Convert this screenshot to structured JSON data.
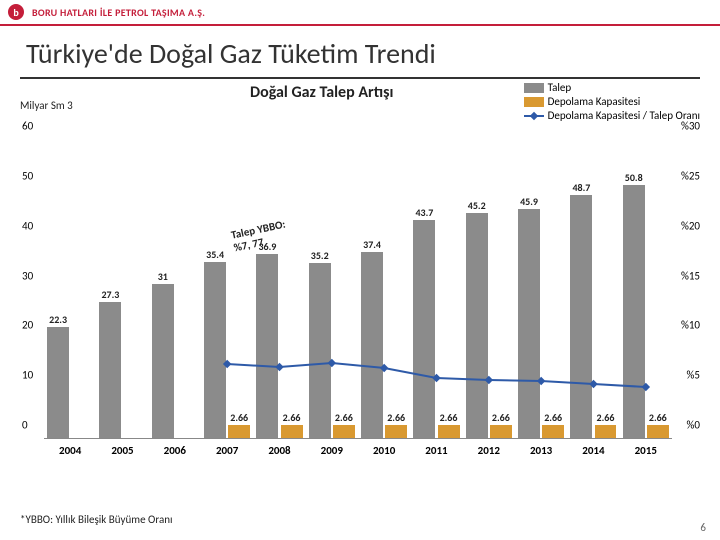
{
  "header": {
    "company": "BORU HATLARI İLE PETROL TAŞIMA A.Ş.",
    "logo_glyph": "b",
    "logo_bg": "#c41e3a"
  },
  "title": "Türkiye'de Doğal Gaz Tüketim  Trendi",
  "chart": {
    "subtitle": "Doğal Gaz Talep Artışı",
    "y_left_label": "Milyar Sm 3",
    "y_left_max": 60,
    "y_left_ticks": [
      0,
      10,
      20,
      30,
      40,
      50,
      60
    ],
    "y_right_ticks_pct": [
      "%0",
      "%5",
      "%10",
      "%15",
      "%20",
      "%25",
      "%30"
    ],
    "legend": {
      "talep": "Talep",
      "depolama": "Depolama Kapasitesi",
      "ratio": "Depolama Kapasitesi / Talep Oranı"
    },
    "colors": {
      "talep": "#8b8b8b",
      "depolama": "#d99931",
      "ratio_line": "#2e5aa8",
      "ratio_marker": "#2e5aa8",
      "grid": "#ffffff",
      "text": "#222222"
    },
    "categories": [
      "2004",
      "2005",
      "2006",
      "2007",
      "2008",
      "2009",
      "2010",
      "2011",
      "2012",
      "2013",
      "2014",
      "2015"
    ],
    "talep_values": [
      22.3,
      27.3,
      31.0,
      35.4,
      36.9,
      35.2,
      37.4,
      43.7,
      45.2,
      45.9,
      48.7,
      50.8
    ],
    "depolama_values": [
      null,
      null,
      null,
      2.66,
      2.66,
      2.66,
      2.66,
      2.66,
      2.66,
      2.66,
      2.66,
      2.66
    ],
    "ratio_pct": [
      null,
      null,
      null,
      7.5,
      7.2,
      7.6,
      7.1,
      6.1,
      5.9,
      5.8,
      5.5,
      5.2
    ],
    "ratio_y_max_pct": 30,
    "callout": {
      "line1": "Talep YBBO:",
      "line2": "%7, 77"
    }
  },
  "footnote": "*YBBO: Yıllık Bileşik Büyüme Oranı",
  "pagenum": "6"
}
